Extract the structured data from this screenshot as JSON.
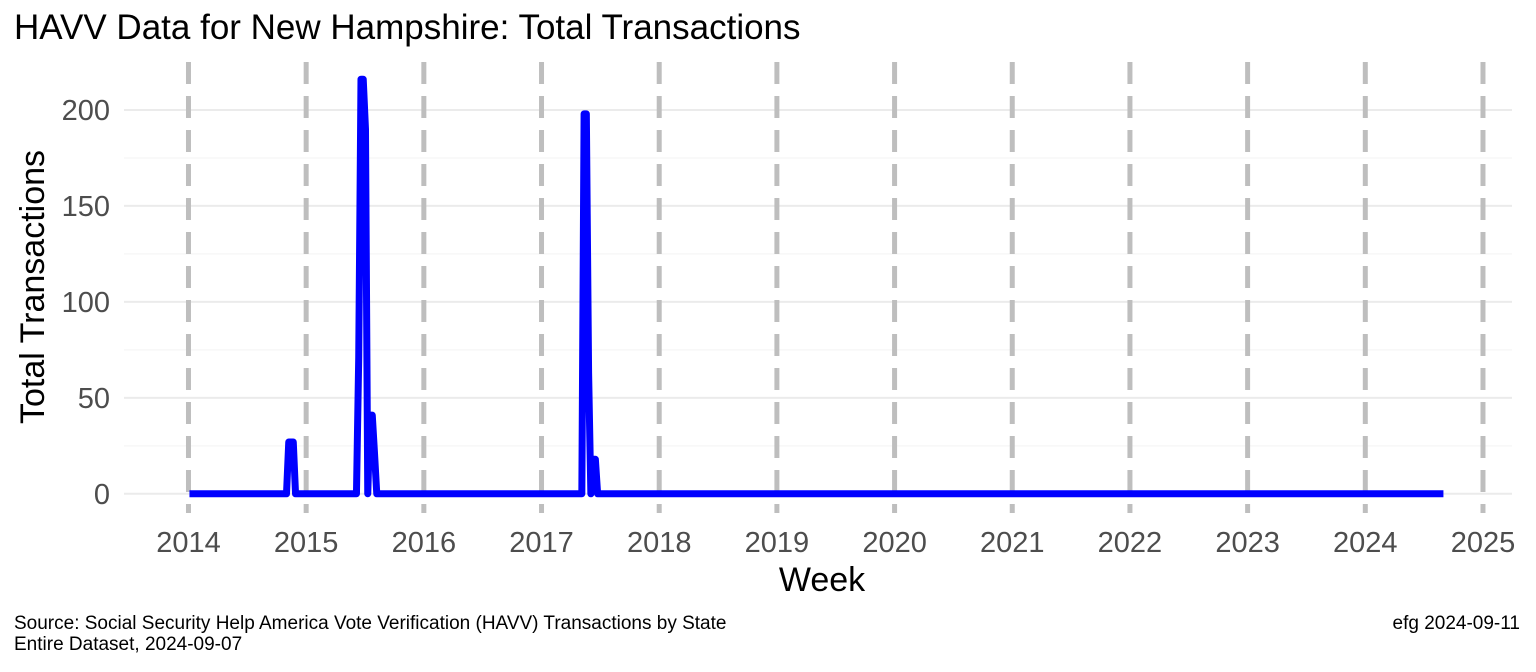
{
  "header": {
    "title": "HAVV Data for New Hampshire:  Total Transactions"
  },
  "footer": {
    "source_line1": "Source:  Social Security Help America Vote Verification (HAVV) Transactions by State",
    "source_line2": "Entire Dataset, 2024-09-07",
    "credit": "efg 2024-09-11"
  },
  "chart_data": {
    "type": "line",
    "title": "HAVV Data for New Hampshire:  Total Transactions",
    "xlabel": "Week",
    "ylabel": "Total Transactions",
    "x_ticks": [
      "2014",
      "2015",
      "2016",
      "2017",
      "2018",
      "2019",
      "2020",
      "2021",
      "2022",
      "2023",
      "2024",
      "2025"
    ],
    "y_ticks": [
      0,
      50,
      100,
      150,
      200
    ],
    "xlim": [
      "2013-06-15",
      "2025-04-01"
    ],
    "ylim": [
      -10,
      225
    ],
    "vertical_dashed_lines_at_years": [
      2014,
      2015,
      2016,
      2017,
      2018,
      2019,
      2020,
      2021,
      2022,
      2023,
      2024,
      2025
    ],
    "grid": true,
    "series": [
      {
        "color": "#0000ff",
        "points": [
          [
            "2014-01-04",
            0
          ],
          [
            "2014-11-01",
            0
          ],
          [
            "2014-11-08",
            27
          ],
          [
            "2014-11-15",
            27
          ],
          [
            "2014-11-22",
            27
          ],
          [
            "2014-11-29",
            0
          ],
          [
            "2015-06-06",
            0
          ],
          [
            "2015-06-13",
            71
          ],
          [
            "2015-06-20",
            216
          ],
          [
            "2015-06-27",
            216
          ],
          [
            "2015-07-04",
            190
          ],
          [
            "2015-07-11",
            0
          ],
          [
            "2015-07-18",
            41
          ],
          [
            "2015-07-25",
            41
          ],
          [
            "2015-08-01",
            21
          ],
          [
            "2015-08-08",
            0
          ],
          [
            "2017-05-06",
            0
          ],
          [
            "2017-05-13",
            198
          ],
          [
            "2017-05-20",
            198
          ],
          [
            "2017-05-27",
            63
          ],
          [
            "2017-06-03",
            0
          ],
          [
            "2017-06-10",
            18
          ],
          [
            "2017-06-17",
            18
          ],
          [
            "2017-06-24",
            0
          ],
          [
            "2024-08-31",
            0
          ]
        ]
      }
    ]
  }
}
